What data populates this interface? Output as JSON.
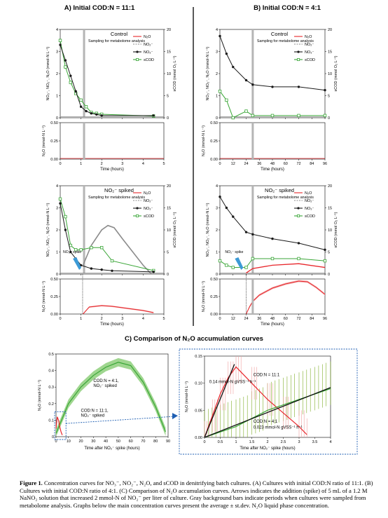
{
  "panelA": {
    "title": "A) Initial COD:N = 11:1"
  },
  "panelB": {
    "title": "B) Initial COD:N = 4:1"
  },
  "panelC": {
    "title": "C) Comparison of N₂O accumulation curves"
  },
  "caption": {
    "label": "Figure 1.",
    "text": "Concentration curves for NO₃⁻, NO₂⁻, N₂O, and sCOD in denitrifying batch cultures. (A) Cultures with initial COD:N ratio of 11:1. (B) Cultures with initial COD:N ratio of 4:1. (C) Comparison of N₂O accumulation curves. Arrows indicates the addition (spike) of 5 mL of a 1.2 M NaNO₂ solution that increased 2 mmol-N of NO₂⁻ per liter of culture. Gray background bars indicate periods when cultures were sampled from metabolome analysis. Graphs below the main concentration curves present the average ± st.dev. N₂O liquid phase concentration."
  },
  "labels": {
    "control": "Control",
    "spiked": "NO₂⁻ spiked",
    "sampling": "Sampling for metabolome analysis",
    "spike": "NO₂⁻ spike",
    "ylab_main": "NO₃⁻, NO₂⁻, N₂O (mmol-N L⁻¹)",
    "ylab_scod": "sCOD (mmol O₂ L⁻¹)",
    "ylab_n2o": "N₂O (mmol-N L⁻¹)",
    "xlab": "Time (hours)",
    "xlabC": "Time after NO₂⁻ spike (hours)",
    "legend": [
      "N₂O",
      "NO₂⁻",
      "NO₃⁻",
      "sCOD"
    ],
    "c_left_41": "COD:N = 4:1, NO₂⁻ spiked",
    "c_left_111": "COD:N = 11:1, NO₂⁻ spiked",
    "c_right_111": "COD:N = 11:1",
    "c_right_111_rate": "0.14 mmol-N gVSS⁻¹ h⁻¹",
    "c_right_41": "COD:N = 4:1",
    "c_right_41_rate": "0.023 mmol-N gVSS⁻¹ h⁻¹"
  },
  "colors": {
    "n2o": "#e8262b",
    "no2": "#8c8c8c",
    "no3": "#1a1a1a",
    "scod": "#3aa637",
    "band_red": "#f2b3b3",
    "band_green": "#9fd68f",
    "spike": "#3c9ad6"
  },
  "chart_data": [
    {
      "id": "A-control",
      "type": "line",
      "title": "Control",
      "x": [
        0,
        0.25,
        0.5,
        0.75,
        1,
        1.25,
        1.5,
        1.75,
        2,
        4.5
      ],
      "series": [
        {
          "name": "NO₃⁻",
          "values": [
            3.3,
            2.6,
            1.9,
            1.2,
            0.5,
            0.3,
            0.2,
            0.15,
            0.1,
            0.1
          ]
        },
        {
          "name": "sCOD",
          "values": [
            17.5,
            11.5,
            8,
            5.5,
            4,
            2.5,
            1.2,
            1,
            0.8,
            0.4
          ]
        }
      ],
      "xlim": [
        0,
        5
      ],
      "ylim": [
        0,
        4
      ],
      "y2lim": [
        0,
        20
      ]
    },
    {
      "id": "A-spiked",
      "type": "line",
      "title": "NO₂⁻ spiked",
      "x": [
        0,
        0.25,
        0.5,
        0.75,
        1,
        1.5,
        2,
        2.5,
        4.5
      ],
      "series": [
        {
          "name": "NO₃⁻",
          "values": [
            3.2,
            2.0,
            1.0,
            0.7,
            0.4,
            0.25,
            0.2,
            0.15,
            0.1
          ]
        },
        {
          "name": "sCOD",
          "values": [
            17,
            13,
            6.5,
            5.5,
            5.5,
            6,
            6,
            3,
            0.8
          ]
        },
        {
          "name": "NO₂⁻",
          "x": [
            1.1,
            1.5,
            2,
            2.3,
            2.6,
            3,
            3.5,
            4,
            4.4
          ],
          "values": [
            0.4,
            1.3,
            2.0,
            2.2,
            2.1,
            1.6,
            1.0,
            0.4,
            0
          ]
        }
      ],
      "xlim": [
        0,
        5
      ],
      "ylim": [
        0,
        4
      ],
      "y2lim": [
        0,
        20
      ]
    },
    {
      "id": "A-spiked-n2o",
      "type": "area",
      "x": [
        1.1,
        1.4,
        2,
        2.5,
        3,
        4,
        4.5
      ],
      "values": [
        0,
        0.1,
        0.12,
        0.11,
        0.09,
        0.05,
        0.02
      ],
      "xlim": [
        0,
        5
      ],
      "ylim": [
        0,
        0.5
      ]
    },
    {
      "id": "B-control",
      "type": "line",
      "title": "Control",
      "x": [
        0,
        6,
        12,
        24,
        30,
        48,
        72,
        96
      ],
      "series": [
        {
          "name": "NO₃⁻",
          "values": [
            3.7,
            2.9,
            2.3,
            1.7,
            1.5,
            1.4,
            1.4,
            1.25
          ]
        },
        {
          "name": "sCOD",
          "values": [
            6,
            4,
            0,
            1.5,
            0.5,
            0.5,
            0.5,
            0.5
          ]
        }
      ],
      "xlim": [
        0,
        96
      ],
      "ylim": [
        0,
        4
      ],
      "y2lim": [
        0,
        20
      ]
    },
    {
      "id": "B-spiked",
      "type": "line",
      "title": "NO₂⁻ spiked",
      "x": [
        0,
        6,
        12,
        24,
        30,
        48,
        72,
        96
      ],
      "series": [
        {
          "name": "NO₃⁻",
          "values": [
            3.5,
            3.0,
            2.6,
            1.9,
            1.8,
            1.6,
            1.4,
            1.1
          ]
        },
        {
          "name": "sCOD",
          "values": [
            3,
            2,
            1.5,
            1.5,
            3.5,
            3.5,
            3.5,
            3
          ]
        },
        {
          "name": "N₂O",
          "x": [
            24,
            30,
            48,
            72,
            96
          ],
          "values": [
            0.05,
            0.25,
            0.4,
            0.47,
            0.3
          ]
        }
      ],
      "xlim": [
        0,
        96
      ],
      "ylim": [
        0,
        4
      ],
      "y2lim": [
        0,
        20
      ]
    },
    {
      "id": "C-left",
      "type": "area",
      "xlabel": "Time after NO₂⁻ spike (hours)",
      "ylabel": "N₂O (mmol-N L⁻¹)",
      "series": [
        {
          "name": "COD:N = 4:1, NO₂⁻ spiked",
          "x": [
            0,
            10,
            20,
            30,
            40,
            50,
            60,
            70,
            80,
            88
          ],
          "values": [
            0.02,
            0.2,
            0.3,
            0.37,
            0.42,
            0.45,
            0.43,
            0.33,
            0.18,
            0.03
          ]
        },
        {
          "name": "COD:N = 11:1, NO₂⁻ spiked",
          "x": [
            0,
            1,
            2,
            3,
            4,
            5
          ],
          "values": [
            0.05,
            0.12,
            0.1,
            0.06,
            0.03,
            0.01
          ]
        }
      ],
      "xlim": [
        0,
        90
      ],
      "ylim": [
        0,
        0.5
      ]
    },
    {
      "id": "C-right",
      "type": "scatter",
      "series": [
        {
          "name": "COD:N = 11:1",
          "x": [
            0,
            0.25,
            0.5,
            0.75,
            1,
            1.5,
            2,
            2.5,
            3,
            3.25
          ],
          "values": [
            0,
            0.04,
            0.08,
            0.11,
            0.13,
            0.1,
            0.07,
            0.045,
            0.02,
            0.005
          ]
        },
        {
          "name": "COD:N = 4:1",
          "x": [
            0,
            0.5,
            1,
            1.5,
            2,
            2.5,
            3,
            3.5,
            4
          ],
          "values": [
            0,
            0.01,
            0.02,
            0.035,
            0.05,
            0.06,
            0.07,
            0.08,
            0.09
          ]
        }
      ],
      "xlim": [
        0,
        4
      ],
      "ylim": [
        0,
        0.15
      ]
    }
  ]
}
